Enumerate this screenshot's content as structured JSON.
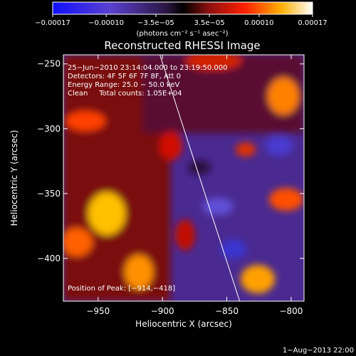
{
  "chart_data": {
    "type": "heatmap",
    "title": "Reconstructed RHESSI Image",
    "xlabel": "Heliocentric X (arcsec)",
    "ylabel": "Heliocentric Y (arcsec)",
    "xlim": [
      -977,
      -790
    ],
    "ylim": [
      -433,
      -243
    ],
    "x_ticks": [
      -950,
      -900,
      -850,
      -800
    ],
    "x_tick_labels": [
      "−950",
      "−900",
      "−850",
      "−800"
    ],
    "y_ticks": [
      -400,
      -350,
      -300,
      -250
    ],
    "y_tick_labels": [
      "−400",
      "−350",
      "−300",
      "−250"
    ],
    "colorbar": {
      "range": [
        -0.00017,
        0.00017
      ],
      "ticks": [
        -0.00017,
        -0.0001,
        -3.5e-05,
        3.5e-05,
        0.0001,
        0.00017
      ],
      "tick_labels": [
        "−0.00017",
        "−0.00010",
        "−3.5e−05",
        "3.5e−05",
        "0.00010",
        "0.00017"
      ],
      "units_label": "(photons cm⁻² s⁻¹ asec⁻²)"
    },
    "info_lines": [
      "25−Jun−2010 23:14:04.000 to 23:19:50.000",
      "Detectors: 4F 5F 6F 7F 8F, Att 0",
      "Energy Range: 25.0 − 50.0 keV",
      "Clean     Total counts: 1.05E+04"
    ],
    "peak_label": "Position of Peak: [−914,−418]",
    "peak_position": [
      -914,
      -418
    ],
    "limb_line": {
      "x_start": -902,
      "y_start": -243,
      "x_end": -840,
      "y_end": -433
    },
    "date_stamp": "1−Aug−2013 22:00"
  }
}
